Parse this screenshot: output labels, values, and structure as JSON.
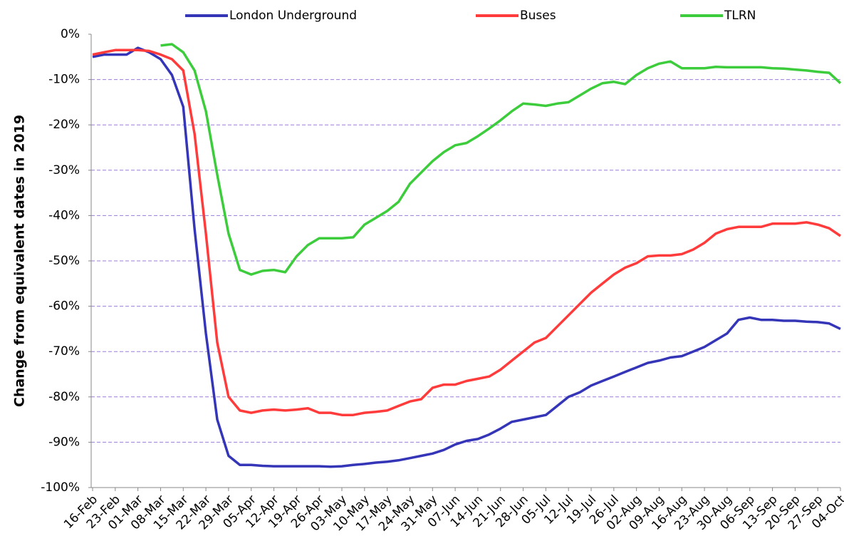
{
  "chart_data": {
    "type": "line",
    "y_label": "Change from equivalent dates in 2019",
    "categories": [
      "16-Feb",
      null,
      "23-Feb",
      null,
      "01-Mar",
      null,
      "08-Mar",
      null,
      "15-Mar",
      null,
      "22-Mar",
      null,
      "29-Mar",
      null,
      "05-Apr",
      null,
      "12-Apr",
      null,
      "19-Apr",
      null,
      "26-Apr",
      null,
      "03-May",
      null,
      "10-May",
      null,
      "17-May",
      null,
      "24-May",
      null,
      "31-May",
      null,
      "07-Jun",
      null,
      "14-Jun",
      null,
      "21-Jun",
      null,
      "28-Jun",
      null,
      "05-Jul",
      null,
      "12-Jul",
      null,
      "19-Jul",
      null,
      "26-Jul",
      null,
      "02-Aug",
      null,
      "09-Aug",
      null,
      "16-Aug",
      null,
      "23-Aug",
      null,
      "30-Aug",
      null,
      "06-Sep",
      null,
      "13-Sep",
      null,
      "20-Sep",
      null,
      "27-Sep",
      null,
      "04-Oct"
    ],
    "series": [
      {
        "name": "London Underground",
        "color": "#3535b8",
        "values": [
          -5,
          -4.5,
          -4.5,
          -4.5,
          -3,
          -4,
          -5.5,
          -9,
          -16,
          -43,
          -66,
          -85,
          -93,
          -95,
          -95,
          -95.2,
          -95.3,
          -95.3,
          -95.3,
          -95.3,
          -95.3,
          -95.4,
          -95.3,
          -95,
          -94.8,
          -94.5,
          -94.3,
          -94,
          -93.5,
          -93,
          -92.5,
          -91.7,
          -90.5,
          -89.7,
          -89.3,
          -88.3,
          -87,
          -85.5,
          -85,
          -84.5,
          -84,
          -82,
          -80,
          -79,
          -77.5,
          -76.5,
          -75.5,
          -74.5,
          -73.5,
          -72.5,
          -72,
          -71.3,
          -71,
          -70,
          -69,
          -67.5,
          -66,
          -63,
          -62.5,
          -63,
          -63,
          -63.2,
          -63.2,
          -63.4,
          -63.5,
          -63.8,
          -65
        ]
      },
      {
        "name": "Buses",
        "color": "#ff3b3b",
        "values": [
          -4.5,
          -4,
          -3.5,
          -3.5,
          -3.5,
          -3.7,
          -4.5,
          -5.5,
          -8,
          -22,
          -44,
          -68,
          -80,
          -83,
          -83.5,
          -83,
          -82.8,
          -83,
          -82.8,
          -82.5,
          -83.5,
          -83.5,
          -84,
          -84,
          -83.5,
          -83.3,
          -83,
          -82,
          -81,
          -80.5,
          -78,
          -77.3,
          -77.3,
          -76.5,
          -76,
          -75.5,
          -74,
          -72,
          -70,
          -68,
          -67,
          -64.5,
          -62,
          -59.5,
          -57,
          -55,
          -53,
          -51.5,
          -50.5,
          -49,
          -48.8,
          -48.8,
          -48.5,
          -47.5,
          -46,
          -44,
          -43,
          -42.5,
          -42.5,
          -42.5,
          -41.8,
          -41.8,
          -41.8,
          -41.5,
          -42,
          -42.8,
          -44.5
        ]
      },
      {
        "name": "TLRN",
        "color": "#3ccc3c",
        "values": [
          null,
          null,
          null,
          null,
          null,
          null,
          -2.5,
          -2.2,
          -4,
          -8,
          -17,
          -31,
          -44,
          -52,
          -53,
          -52.2,
          -52,
          -52.5,
          -49,
          -46.5,
          -45,
          -45,
          -45,
          -44.8,
          -42,
          -40.5,
          -39,
          -37,
          -33,
          -30.5,
          -28,
          -26,
          -24.5,
          -24,
          -22.5,
          -20.8,
          -19,
          -17,
          -15.3,
          -15.5,
          -15.8,
          -15.3,
          -15,
          -13.5,
          -12,
          -10.8,
          -10.5,
          -11,
          -9,
          -7.5,
          -6.5,
          -6,
          -7.5,
          -7.5,
          -7.5,
          -7.2,
          -7.3,
          -7.3,
          -7.3,
          -7.3,
          -7.5,
          -7.6,
          -7.8,
          -8,
          -8.3,
          -8.5,
          -10.8
        ]
      }
    ],
    "ylim": [
      -100,
      0
    ],
    "yticks": [
      {
        "value": -100,
        "label": "-100%"
      },
      {
        "value": -90,
        "label": "-90%"
      },
      {
        "value": -80,
        "label": "-80%"
      },
      {
        "value": -70,
        "label": "-70%"
      },
      {
        "value": -60,
        "label": "-60%"
      },
      {
        "value": -50,
        "label": "-50%"
      },
      {
        "value": -40,
        "label": "-40%"
      },
      {
        "value": -30,
        "label": "-30%"
      },
      {
        "value": -20,
        "label": "-20%"
      },
      {
        "value": -10,
        "label": "-10%"
      },
      {
        "value": 0,
        "label": "0%"
      }
    ],
    "grid": true,
    "legend": "top"
  }
}
